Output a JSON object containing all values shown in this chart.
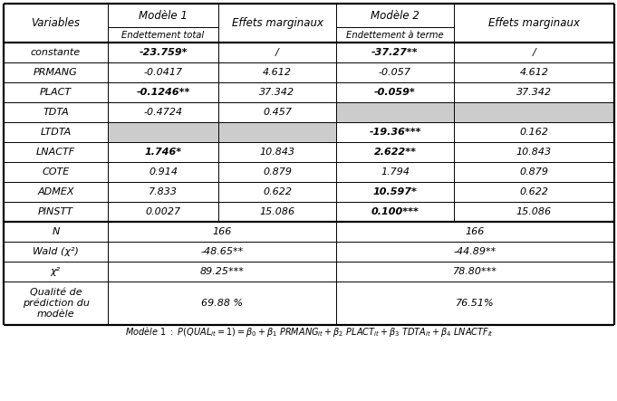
{
  "col_headers": [
    "Variables",
    "Modèle 1",
    "Effets marginaux",
    "Modèle 2",
    "Effets marginaux"
  ],
  "sub_headers": [
    "",
    "Endettement total",
    "",
    "Endettement à terme",
    ""
  ],
  "rows": [
    {
      "var": "constante",
      "m1": "-23.759*",
      "m1b": true,
      "em1": "/",
      "m2": "-37.27**",
      "m2b": true,
      "em2": "/",
      "gm1": false,
      "gm2": false
    },
    {
      "var": "PRMANG",
      "m1": "-0.0417",
      "m1b": false,
      "em1": "4.612",
      "m2": "-0.057",
      "m2b": false,
      "em2": "4.612",
      "gm1": false,
      "gm2": false
    },
    {
      "var": "PLACT",
      "m1": "-0.1246**",
      "m1b": true,
      "em1": "37.342",
      "m2": "-0.059*",
      "m2b": true,
      "em2": "37.342",
      "gm1": false,
      "gm2": false
    },
    {
      "var": "TDTA",
      "m1": "-0.4724",
      "m1b": false,
      "em1": "0.457",
      "m2": "",
      "m2b": false,
      "em2": "",
      "gm1": false,
      "gm2": true
    },
    {
      "var": "LTDTA",
      "m1": "",
      "m1b": false,
      "em1": "",
      "m2": "-19.36***",
      "m2b": true,
      "em2": "0.162",
      "gm1": true,
      "gm2": false
    },
    {
      "var": "LNACTF",
      "m1": "1.746*",
      "m1b": true,
      "em1": "10.843",
      "m2": "2.622**",
      "m2b": true,
      "em2": "10.843",
      "gm1": false,
      "gm2": false
    },
    {
      "var": "COTE",
      "m1": "0.914",
      "m1b": false,
      "em1": "0.879",
      "m2": "1.794",
      "m2b": false,
      "em2": "0.879",
      "gm1": false,
      "gm2": false
    },
    {
      "var": "ADMEX",
      "m1": "7.833",
      "m1b": false,
      "em1": "0.622",
      "m2": "10.597*",
      "m2b": true,
      "em2": "0.622",
      "gm1": false,
      "gm2": false
    },
    {
      "var": "PINSTT",
      "m1": "0.0027",
      "m1b": false,
      "em1": "15.086",
      "m2": "0.100***",
      "m2b": true,
      "em2": "15.086",
      "gm1": false,
      "gm2": false
    }
  ],
  "stats": [
    {
      "label": "N",
      "v1": "166",
      "v2": "166"
    },
    {
      "label": "Wald (χ²)",
      "v1": "-48.65**",
      "v2": "-44.89**"
    },
    {
      "label": "χ²",
      "v1": "89.25***",
      "v2": "78.80***"
    },
    {
      "label": "Qualité de\nprédiction du\nmodèle",
      "v1": "69.88 %",
      "v2": "76.51%"
    }
  ],
  "gray": "#cccccc",
  "white": "#ffffff",
  "lw_thick": 1.6,
  "lw_thin": 0.7,
  "fs_header": 8.5,
  "fs_subheader": 7.2,
  "fs_data": 8.0,
  "fs_footer": 7.0
}
